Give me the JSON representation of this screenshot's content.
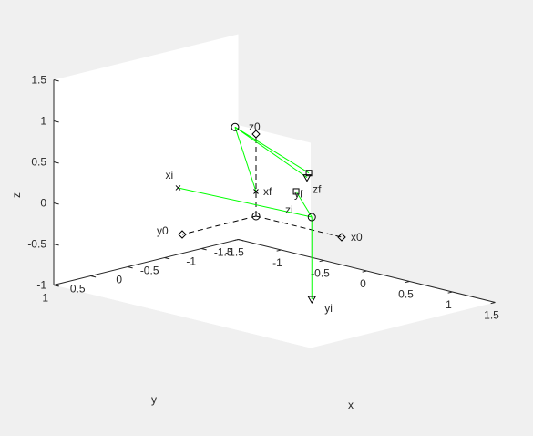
{
  "chart_data": {
    "type": "line",
    "projection": "3d",
    "xlabel": "x",
    "ylabel": "y",
    "zlabel": "z",
    "xlim": [
      -1.5,
      1.5
    ],
    "ylim": [
      -1.5,
      1
    ],
    "zlim": [
      -1,
      1.5
    ],
    "x_ticks": [
      "-1.5",
      "-1",
      "-0.5",
      "0",
      "0.5",
      "1",
      "1.5"
    ],
    "y_ticks": [
      "-1.5",
      "-1",
      "-0.5",
      "0",
      "0.5",
      "1"
    ],
    "z_ticks": [
      "-1",
      "-0.5",
      "0",
      "0.5",
      "1",
      "1.5"
    ],
    "grid": false,
    "colors": {
      "initial": "#00ff00",
      "reference": "#000000"
    },
    "reference_frame": {
      "origin": [
        0,
        0,
        0
      ],
      "axes": [
        {
          "label": "x0",
          "end": [
            1,
            0,
            0
          ],
          "marker": "diamond"
        },
        {
          "label": "y0",
          "end": [
            0,
            1,
            0
          ],
          "marker": "diamond"
        },
        {
          "label": "z0",
          "end": [
            0,
            0,
            1
          ],
          "marker": "diamond"
        }
      ]
    },
    "initial_frame": {
      "origin": [
        0.35,
        -0.35,
        0
      ],
      "axes": [
        {
          "label": "xi",
          "end": [
            -0.35,
            0.65,
            0.4
          ],
          "marker": "x"
        },
        {
          "label": "yi",
          "end": [
            0.35,
            -0.35,
            -1
          ],
          "marker": "triangle-down"
        },
        {
          "label": "zi",
          "end": [
            -0.35,
            -0.95,
            0
          ],
          "marker": "square"
        }
      ]
    },
    "final_frame": {
      "origin": [
        0.1,
        0.4,
        1.2
      ],
      "axes": [
        {
          "label": "xf",
          "end": [
            0,
            0,
            0.3
          ],
          "marker": "x"
        },
        {
          "label": "yf",
          "end": [
            0.94,
            0.4,
            0.8
          ],
          "marker": "triangle-down"
        },
        {
          "label": "zf",
          "end": [
            1.04,
            0.49,
            0.9
          ],
          "marker": "square"
        }
      ]
    }
  }
}
